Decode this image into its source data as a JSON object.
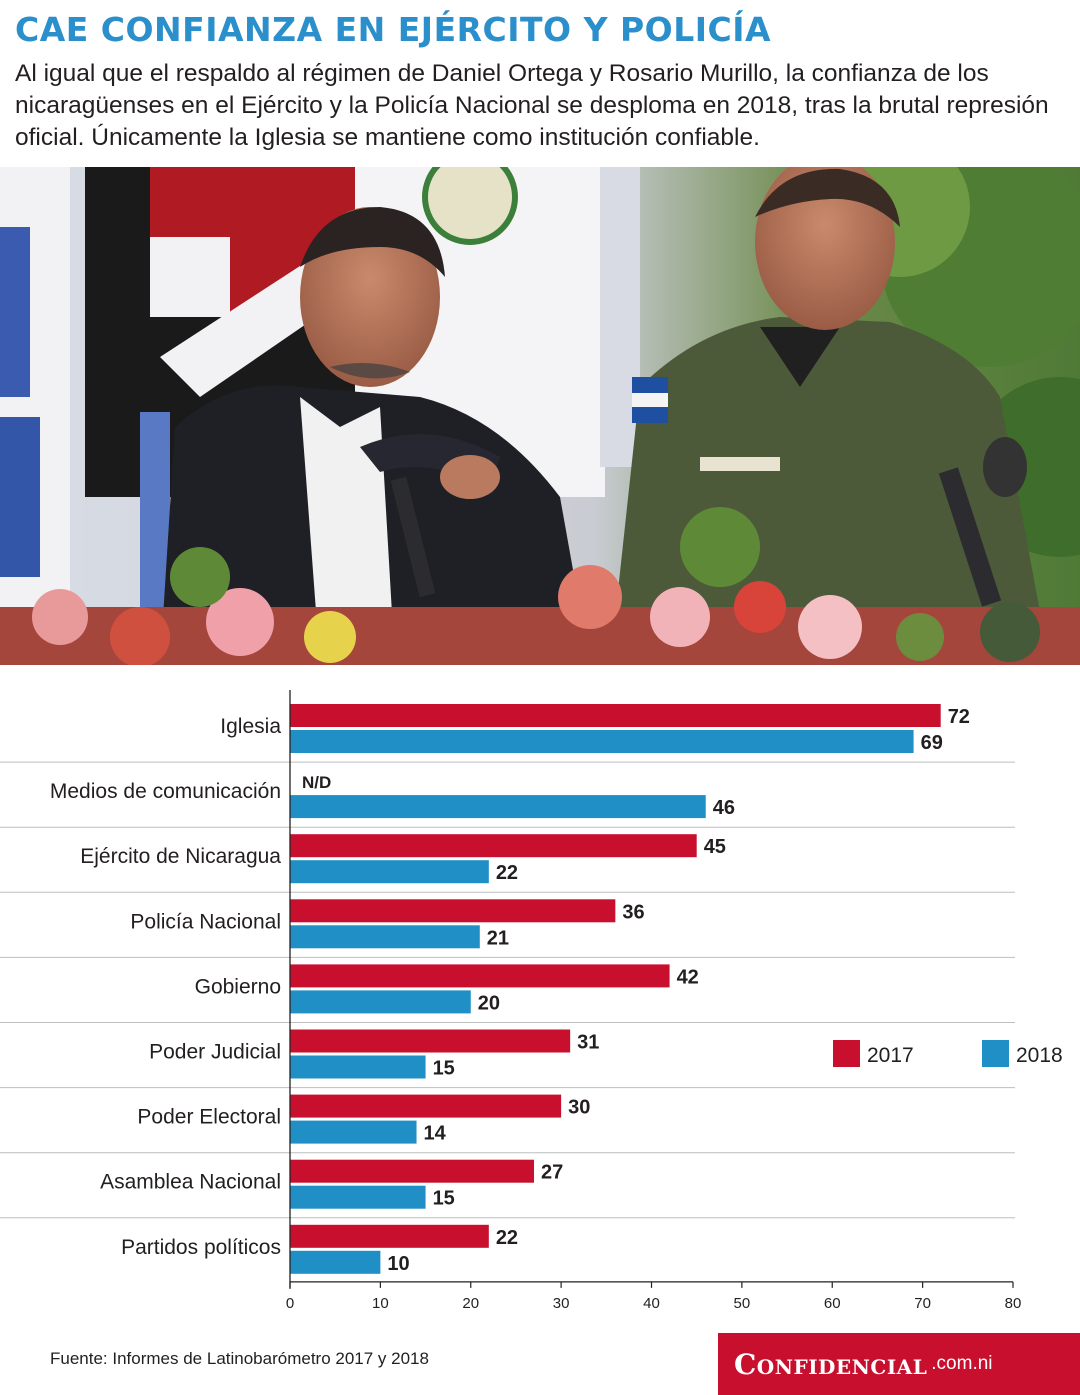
{
  "headline": "CAE CONFIANZA EN EJÉRCITO Y POLICÍA",
  "intro": "Al igual que el respaldo al régimen de Daniel Ortega y Rosario Murillo, la confianza de los nicaragüenses en el Ejército y la Policía Nacional se desploma en 2018, tras la brutal represión oficial. Únicamente la Iglesia se mantiene como institución confiable.",
  "colors": {
    "headline": "#2b8fcb",
    "series_2017": "#c8102e",
    "series_2018": "#1f8fc6",
    "brand_bg": "#c8102e"
  },
  "chart_data": {
    "type": "bar",
    "orientation": "horizontal",
    "categories": [
      "Iglesia",
      "Medios de comunicación",
      "Ejército de Nicaragua",
      "Policía Nacional",
      "Gobierno",
      "Poder Judicial",
      "Poder Electoral",
      "Asamblea Nacional",
      "Partidos políticos"
    ],
    "series": [
      {
        "name": "2017",
        "color": "#c8102e",
        "values": [
          72,
          null,
          45,
          36,
          42,
          31,
          30,
          27,
          22
        ],
        "missing_label": "N/D"
      },
      {
        "name": "2018",
        "color": "#1f8fc6",
        "values": [
          69,
          46,
          22,
          21,
          20,
          15,
          14,
          15,
          10
        ]
      }
    ],
    "xlim": [
      0,
      80
    ],
    "xticks": [
      0,
      10,
      20,
      30,
      40,
      50,
      60,
      70,
      80
    ],
    "grid": false,
    "legend_position": "right"
  },
  "source": "Fuente: Informes de Latinobarómetro 2017 y 2018",
  "brand": {
    "name": "Confidencial",
    "domain": ".com.ni"
  }
}
